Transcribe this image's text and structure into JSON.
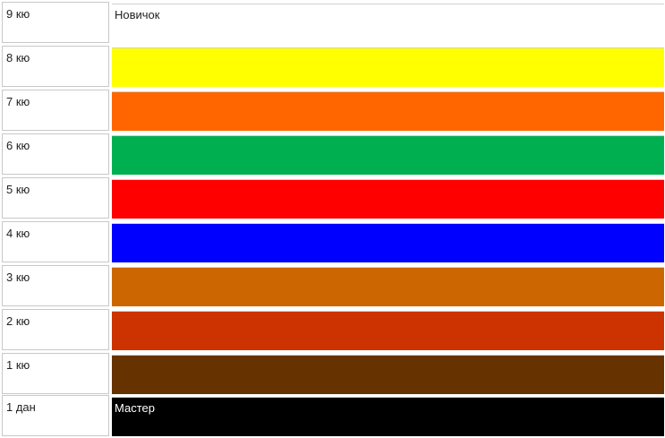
{
  "rows": [
    {
      "rank": "9 кю",
      "color": "#ffffff",
      "text": "Новичок",
      "text_color": "#222222"
    },
    {
      "rank": "8 кю",
      "color": "#ffff00",
      "text": "",
      "text_color": "#222222"
    },
    {
      "rank": "7 кю",
      "color": "#ff6600",
      "text": "",
      "text_color": "#222222"
    },
    {
      "rank": "6 кю",
      "color": "#00b050",
      "text": "",
      "text_color": "#222222"
    },
    {
      "rank": "5 кю",
      "color": "#ff0000",
      "text": "",
      "text_color": "#222222"
    },
    {
      "rank": "4 кю",
      "color": "#0000ff",
      "text": "",
      "text_color": "#222222"
    },
    {
      "rank": "3 кю",
      "color": "#cc6600",
      "text": "",
      "text_color": "#222222"
    },
    {
      "rank": "2 кю",
      "color": "#cc3300",
      "text": "",
      "text_color": "#222222"
    },
    {
      "rank": "1 кю",
      "color": "#663300",
      "text": "",
      "text_color": "#222222"
    },
    {
      "rank": "1 дан",
      "color": "#000000",
      "text": "Мастер",
      "text_color": "#ffffff"
    }
  ]
}
